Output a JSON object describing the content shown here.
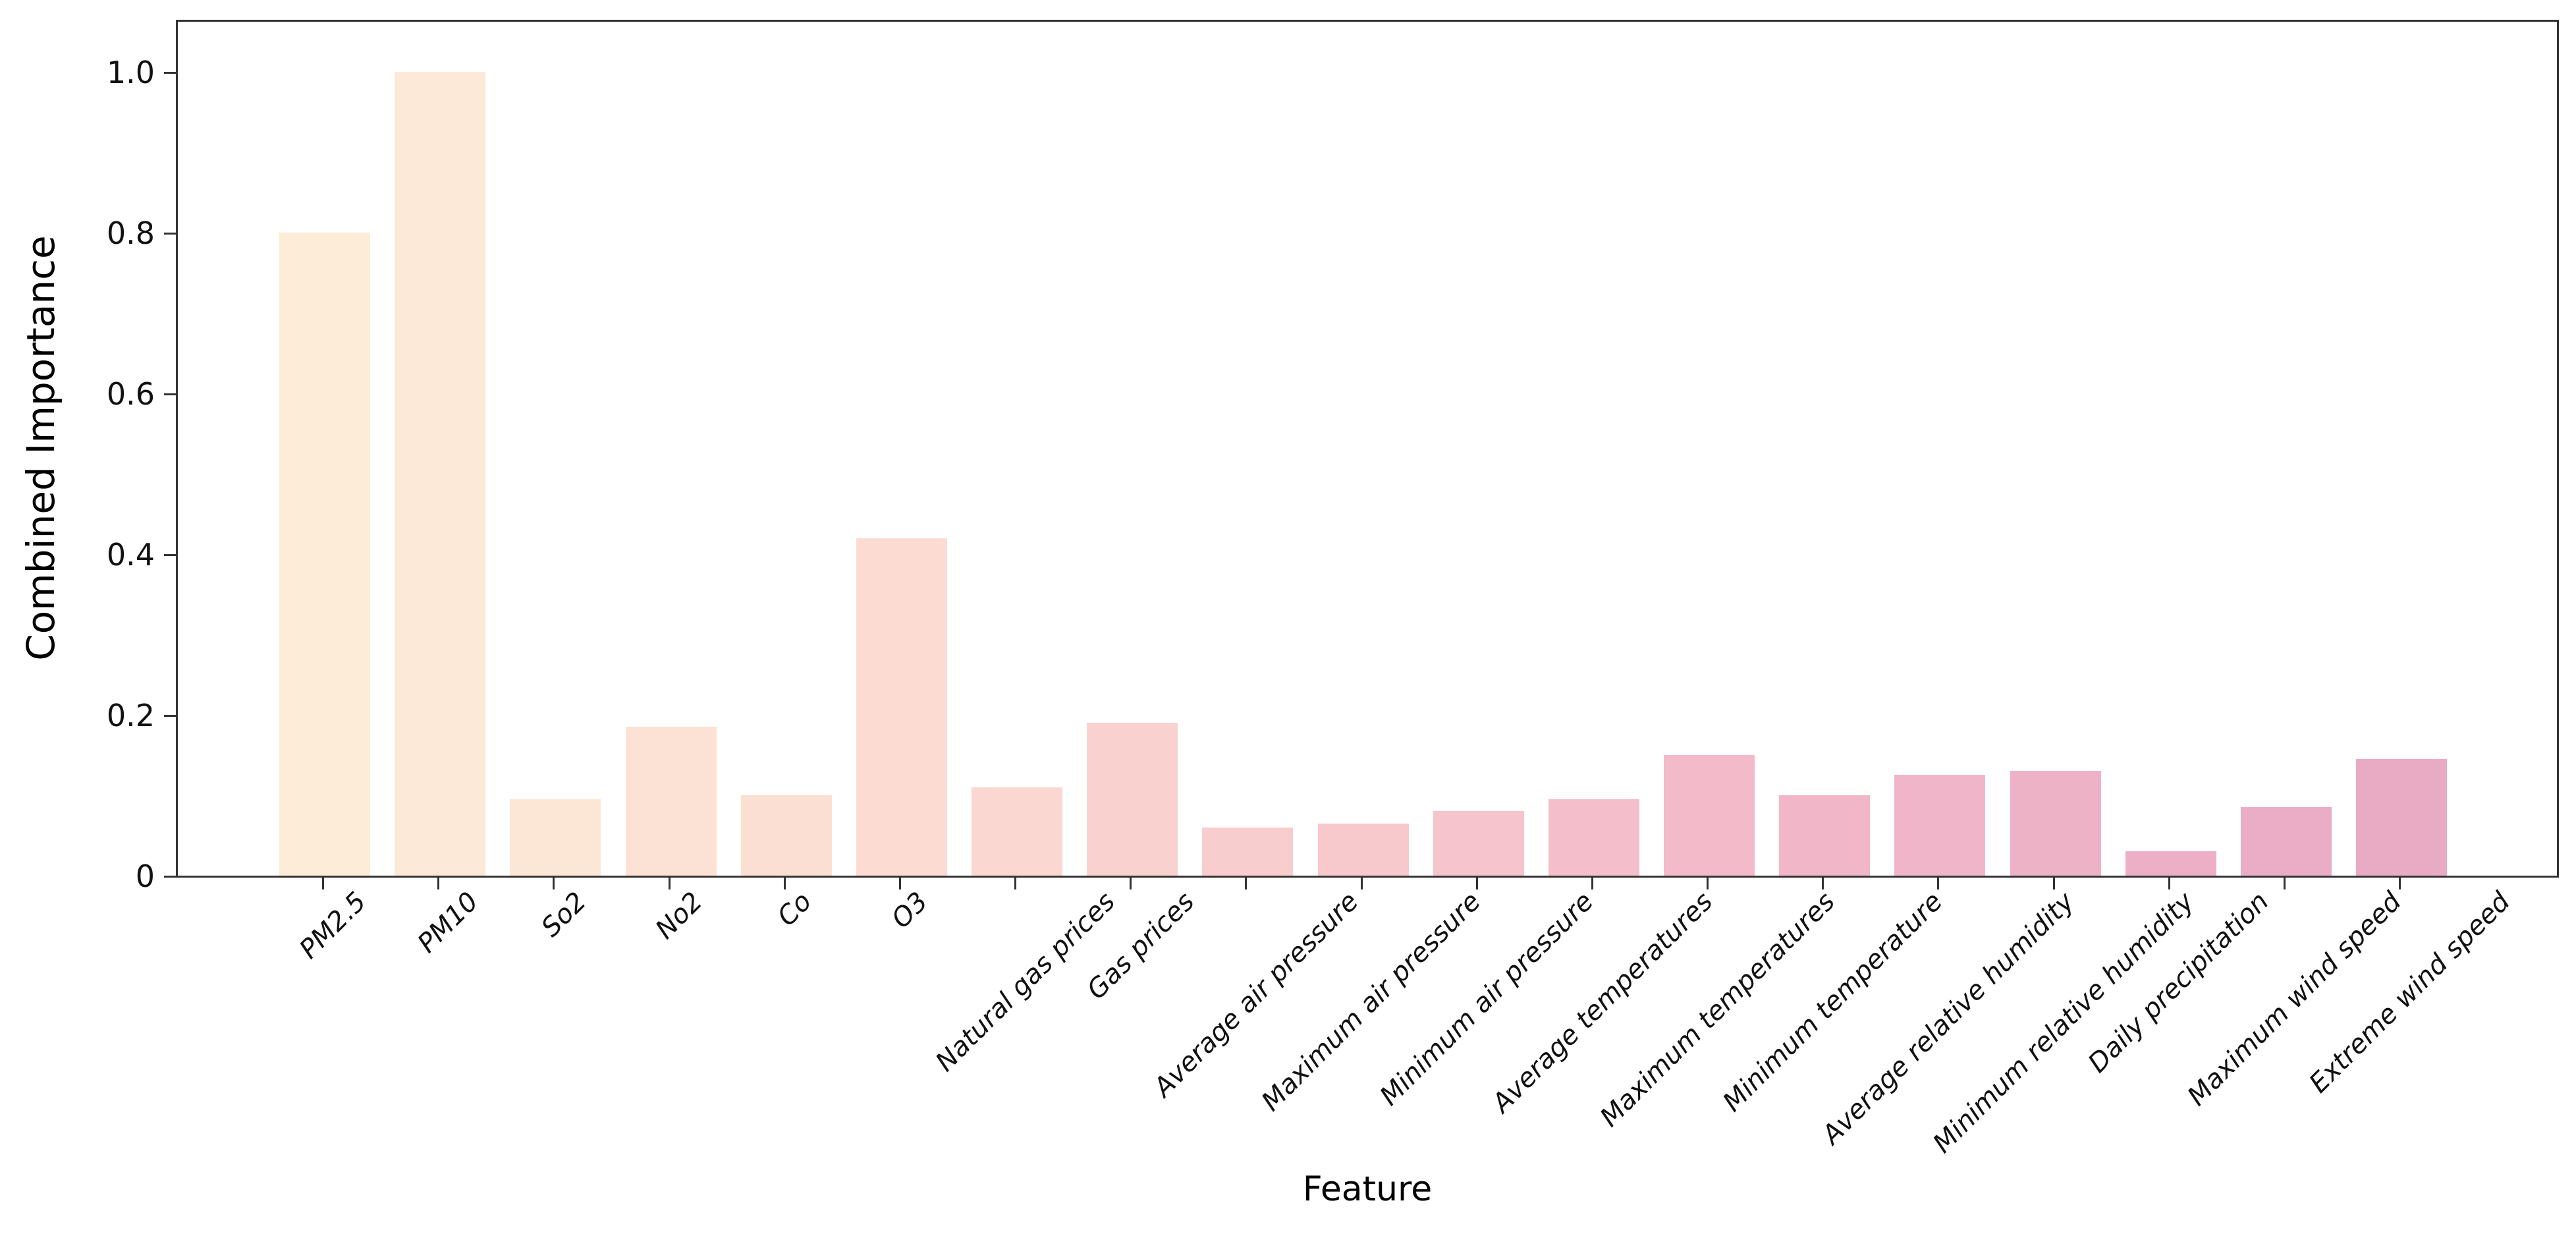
{
  "chart_data": {
    "type": "bar",
    "title": "",
    "xlabel": "Feature",
    "ylabel": "Combined Importance",
    "grid": false,
    "legend": "none",
    "ylim": [
      0,
      1.066
    ],
    "yticks": [
      {
        "label": "1.0",
        "value": 1.0
      },
      {
        "label": "0.8",
        "value": 0.8
      },
      {
        "label": "0.6",
        "value": 0.6
      },
      {
        "label": "0.4",
        "value": 0.4
      },
      {
        "label": "0.2",
        "value": 0.2
      },
      {
        "label": "0",
        "value": 0.0
      }
    ],
    "categories": [
      "PM2.5",
      "PM10",
      "So2",
      "No2",
      "Co",
      "O3",
      "Natural gas prices",
      "Gas prices",
      "Average air pressure",
      "Maximum air pressure",
      "Minimum air pressure",
      "Average temperatures",
      "Maximum temperatures",
      "Minimum temperature",
      "Average relative humidity",
      "Minimum relative humidity",
      "Daily precipitation",
      "Maximum wind speed",
      "Extreme wind speed"
    ],
    "values": [
      0.8,
      1.0,
      0.095,
      0.185,
      0.1,
      0.42,
      0.11,
      0.19,
      0.06,
      0.065,
      0.08,
      0.095,
      0.15,
      0.1,
      0.125,
      0.13,
      0.03,
      0.085,
      0.145
    ],
    "bar_colors": [
      "#fcecd8",
      "#fce9d7",
      "#fce6d6",
      "#fce2d4",
      "#fcdfd3",
      "#fcdcd2",
      "#fbd7d1",
      "#f9d2cf",
      "#f8cdce",
      "#f7c9cd",
      "#f6c4cc",
      "#f4bfca",
      "#f3bac9",
      "#f1b7c8",
      "#f0b5c8",
      "#eeb2c7",
      "#ecafc6",
      "#ebadc5",
      "#e9aac4"
    ],
    "axis_color": "#333333",
    "text_color": "#111111"
  },
  "layout_note_values_are_data_not_layout": "all visible text lives above"
}
